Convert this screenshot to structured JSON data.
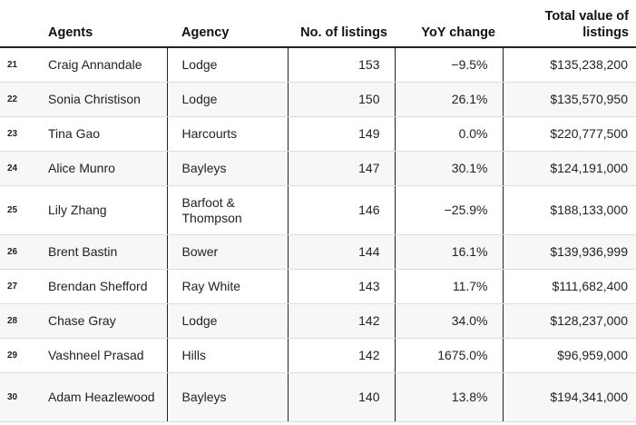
{
  "chart_data": {
    "type": "table",
    "columns": [
      "",
      "Agents",
      "Agency",
      "No. of listings",
      "YoY change",
      "Total value of listings"
    ],
    "rows": [
      {
        "rank": "21",
        "agent": "Craig Annandale",
        "agency": "Lodge",
        "listings": "153",
        "yoy": "−9.5%",
        "total": "$135,238,200"
      },
      {
        "rank": "22",
        "agent": "Sonia Christison",
        "agency": "Lodge",
        "listings": "150",
        "yoy": "26.1%",
        "total": "$135,570,950"
      },
      {
        "rank": "23",
        "agent": "Tina Gao",
        "agency": "Harcourts",
        "listings": "149",
        "yoy": "0.0%",
        "total": "$220,777,500"
      },
      {
        "rank": "24",
        "agent": "Alice Munro",
        "agency": "Bayleys",
        "listings": "147",
        "yoy": "30.1%",
        "total": "$124,191,000"
      },
      {
        "rank": "25",
        "agent": "Lily Zhang",
        "agency": "Barfoot & Thompson",
        "listings": "146",
        "yoy": "−25.9%",
        "total": "$188,133,000"
      },
      {
        "rank": "26",
        "agent": "Brent Bastin",
        "agency": "Bower",
        "listings": "144",
        "yoy": "16.1%",
        "total": "$139,936,999"
      },
      {
        "rank": "27",
        "agent": "Brendan Shefford",
        "agency": "Ray White",
        "listings": "143",
        "yoy": "11.7%",
        "total": "$111,682,400"
      },
      {
        "rank": "28",
        "agent": "Chase Gray",
        "agency": "Lodge",
        "listings": "142",
        "yoy": "34.0%",
        "total": "$128,237,000"
      },
      {
        "rank": "29",
        "agent": "Vashneel Prasad",
        "agency": "Hills",
        "listings": "142",
        "yoy": "1675.0%",
        "total": "$96,959,000"
      },
      {
        "rank": "30",
        "agent": "Adam Heazlewood",
        "agency": "Bayleys",
        "listings": "140",
        "yoy": "13.8%",
        "total": "$194,341,000"
      }
    ]
  }
}
